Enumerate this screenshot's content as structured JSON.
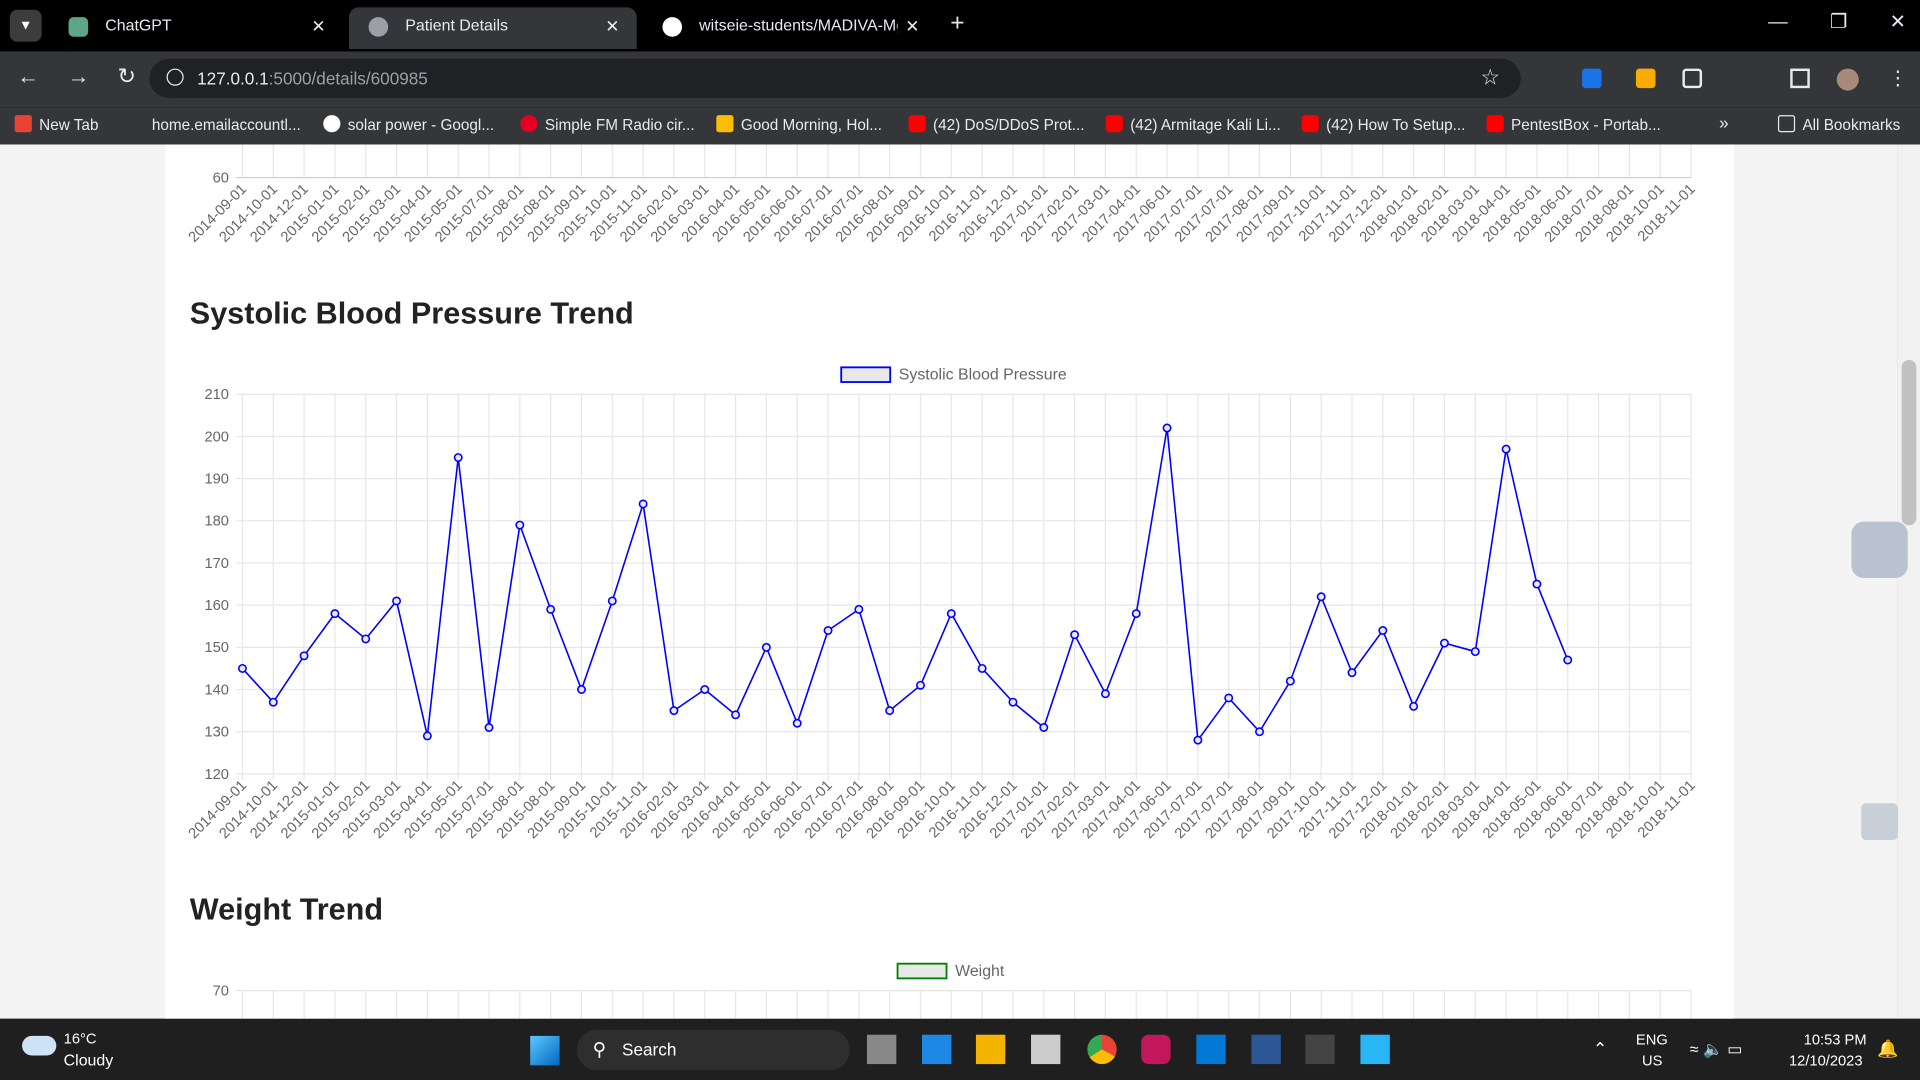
{
  "tabs": [
    "ChatGPT",
    "Patient Details",
    "witseie-students/MADIVA-Mgw"
  ],
  "address": {
    "host": "127.0.0.1",
    "path": ":5000/details/600985"
  },
  "bookmarks": [
    "New Tab",
    "home.emailaccountl...",
    "solar power - Googl...",
    "Simple FM Radio cir...",
    "Good Morning, Hol...",
    "(42) DoS/DDoS Prot...",
    "(42) Armitage Kali Li...",
    "(42) How To Setup...",
    "PentestBox - Portab..."
  ],
  "all_bookmarks": "All Bookmarks",
  "chart_data": [
    {
      "type": "line",
      "categories": [
        "2014-09-01",
        "2014-10-01",
        "2014-12-01",
        "2015-01-01",
        "2015-02-01",
        "2015-03-01",
        "2015-04-01",
        "2015-05-01",
        "2015-07-01",
        "2015-08-01",
        "2015-08-01",
        "2015-09-01",
        "2015-10-01",
        "2015-11-01",
        "2016-02-01",
        "2016-03-01",
        "2016-04-01",
        "2016-05-01",
        "2016-06-01",
        "2016-07-01",
        "2016-07-01",
        "2016-08-01",
        "2016-09-01",
        "2016-10-01",
        "2016-11-01",
        "2016-12-01",
        "2017-01-01",
        "2017-02-01",
        "2017-03-01",
        "2017-04-01",
        "2017-06-01",
        "2017-07-01",
        "2017-07-01",
        "2017-08-01",
        "2017-09-01",
        "2017-10-01",
        "2017-11-01",
        "2017-12-01",
        "2018-01-01",
        "2018-02-01",
        "2018-03-01",
        "2018-04-01",
        "2018-05-01",
        "2018-06-01",
        "2018-07-01",
        "2018-08-01",
        "2018-10-01",
        "2018-11-01"
      ],
      "yticks": [
        60
      ]
    },
    {
      "type": "line",
      "title": "Systolic Blood Pressure Trend",
      "categories": [
        "2014-09-01",
        "2014-10-01",
        "2014-12-01",
        "2015-01-01",
        "2015-02-01",
        "2015-03-01",
        "2015-04-01",
        "2015-05-01",
        "2015-07-01",
        "2015-08-01",
        "2015-08-01",
        "2015-09-01",
        "2015-10-01",
        "2015-11-01",
        "2016-02-01",
        "2016-03-01",
        "2016-04-01",
        "2016-05-01",
        "2016-06-01",
        "2016-07-01",
        "2016-07-01",
        "2016-08-01",
        "2016-09-01",
        "2016-10-01",
        "2016-11-01",
        "2016-12-01",
        "2017-01-01",
        "2017-02-01",
        "2017-03-01",
        "2017-04-01",
        "2017-06-01",
        "2017-07-01",
        "2017-07-01",
        "2017-08-01",
        "2017-09-01",
        "2017-10-01",
        "2017-11-01",
        "2017-12-01",
        "2018-01-01",
        "2018-02-01",
        "2018-03-01",
        "2018-04-01",
        "2018-05-01",
        "2018-06-01",
        "2018-07-01",
        "2018-08-01",
        "2018-10-01",
        "2018-11-01"
      ],
      "series": [
        {
          "name": "Systolic Blood Pressure",
          "color": "#0000ff",
          "values": [
            145,
            137,
            148,
            158,
            152,
            161,
            129,
            195,
            131,
            179,
            159,
            140,
            161,
            184,
            135,
            140,
            134,
            150,
            132,
            154,
            159,
            135,
            141,
            158,
            145,
            137,
            131,
            153,
            139,
            158,
            202,
            128,
            138,
            130,
            142,
            162,
            144,
            154,
            136,
            151,
            149,
            197,
            165,
            147,
            null,
            null,
            null,
            null
          ]
        }
      ],
      "ylim": [
        120,
        210
      ],
      "yticks": [
        120,
        130,
        140,
        150,
        160,
        170,
        180,
        190,
        200,
        210
      ],
      "grid": true
    },
    {
      "type": "line",
      "title": "Weight Trend",
      "series": [
        {
          "name": "Weight",
          "color": "#008000"
        }
      ],
      "yticks": [
        70
      ]
    }
  ],
  "taskbar": {
    "temperature": "16°C",
    "weather": "Cloudy",
    "search": "Search",
    "lang": "ENG",
    "region": "US",
    "time": "10:53 PM",
    "date": "12/10/2023"
  }
}
